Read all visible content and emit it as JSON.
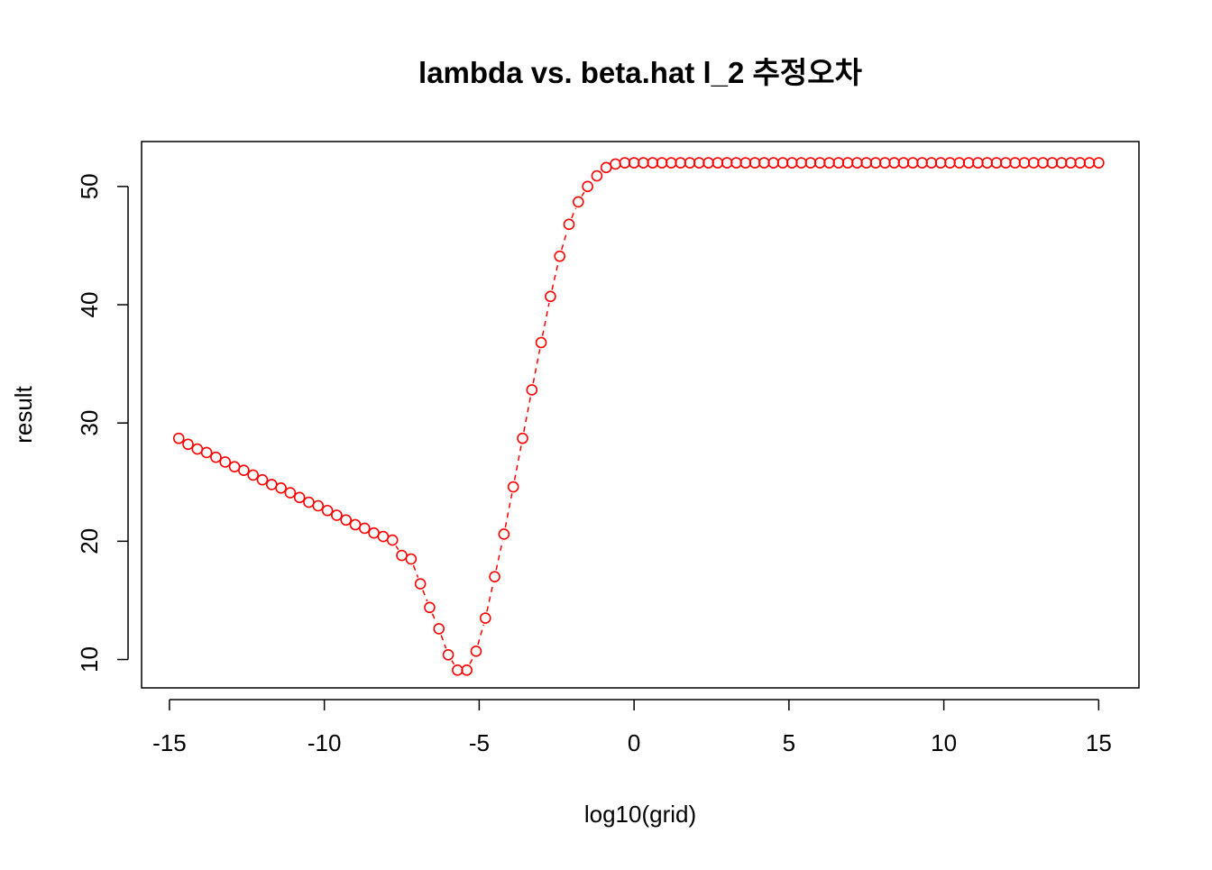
{
  "chart_data": {
    "type": "scatter",
    "title": "lambda vs. beta.hat l_2 추정오차",
    "xlabel": "log10(grid)",
    "ylabel": "result",
    "xlim": [
      -15.9,
      16.3
    ],
    "ylim": [
      7.6,
      53.8
    ],
    "x_ticks": [
      "-15",
      "-10",
      "-5",
      "0",
      "5",
      "10",
      "15"
    ],
    "y_ticks": [
      "10",
      "20",
      "30",
      "40",
      "50"
    ],
    "point_color": "#ff0000",
    "point_style": "open-circle",
    "line_style": "dashed",
    "grid": false,
    "legend": "none",
    "series": [
      {
        "x": [
          -14.7,
          -14.4,
          -14.1,
          -13.8,
          -13.5,
          -13.2,
          -12.9,
          -12.6,
          -12.3,
          -12.0,
          -11.7,
          -11.4,
          -11.1,
          -10.8,
          -10.5,
          -10.2,
          -9.9,
          -9.6,
          -9.3,
          -9.0,
          -8.7,
          -8.4,
          -8.1,
          -7.8,
          -7.5,
          -7.2,
          -6.9,
          -6.6,
          -6.3,
          -6.0,
          -5.7,
          -5.4,
          -5.1,
          -4.8,
          -4.5,
          -4.2,
          -3.9,
          -3.6,
          -3.3,
          -3.0,
          -2.7,
          -2.4,
          -2.1,
          -1.8,
          -1.5,
          -1.2,
          -0.9,
          -0.6,
          -0.3,
          0.0,
          0.3,
          0.6,
          0.9,
          1.2,
          1.5,
          1.8,
          2.1,
          2.4,
          2.7,
          3.0,
          3.3,
          3.6,
          3.9,
          4.2,
          4.5,
          4.8,
          5.1,
          5.4,
          5.7,
          6.0,
          6.3,
          6.6,
          6.9,
          7.2,
          7.5,
          7.8,
          8.1,
          8.4,
          8.7,
          9.0,
          9.3,
          9.6,
          9.9,
          10.2,
          10.5,
          10.8,
          11.1,
          11.4,
          11.7,
          12.0,
          12.3,
          12.6,
          12.9,
          13.2,
          13.5,
          13.8,
          14.1,
          14.4,
          14.7,
          15.0
        ],
        "y": [
          28.7,
          28.2,
          27.8,
          27.5,
          27.1,
          26.7,
          26.3,
          26.0,
          25.6,
          25.2,
          24.8,
          24.5,
          24.1,
          23.7,
          23.3,
          23.0,
          22.6,
          22.2,
          21.8,
          21.4,
          21.1,
          20.7,
          20.4,
          20.1,
          18.8,
          18.5,
          16.4,
          14.4,
          12.6,
          10.4,
          9.1,
          9.1,
          10.7,
          13.5,
          17.0,
          20.6,
          24.6,
          28.7,
          32.8,
          36.8,
          40.7,
          44.1,
          46.8,
          48.7,
          50.0,
          50.9,
          51.6,
          51.9,
          52.0,
          52.0,
          52.0,
          52.0,
          52.0,
          52.0,
          52.0,
          52.0,
          52.0,
          52.0,
          52.0,
          52.0,
          52.0,
          52.0,
          52.0,
          52.0,
          52.0,
          52.0,
          52.0,
          52.0,
          52.0,
          52.0,
          52.0,
          52.0,
          52.0,
          52.0,
          52.0,
          52.0,
          52.0,
          52.0,
          52.0,
          52.0,
          52.0,
          52.0,
          52.0,
          52.0,
          52.0,
          52.0,
          52.0,
          52.0,
          52.0,
          52.0,
          52.0,
          52.0,
          52.0,
          52.0,
          52.0,
          52.0,
          52.0,
          52.0,
          52.0,
          52.0
        ]
      }
    ]
  }
}
